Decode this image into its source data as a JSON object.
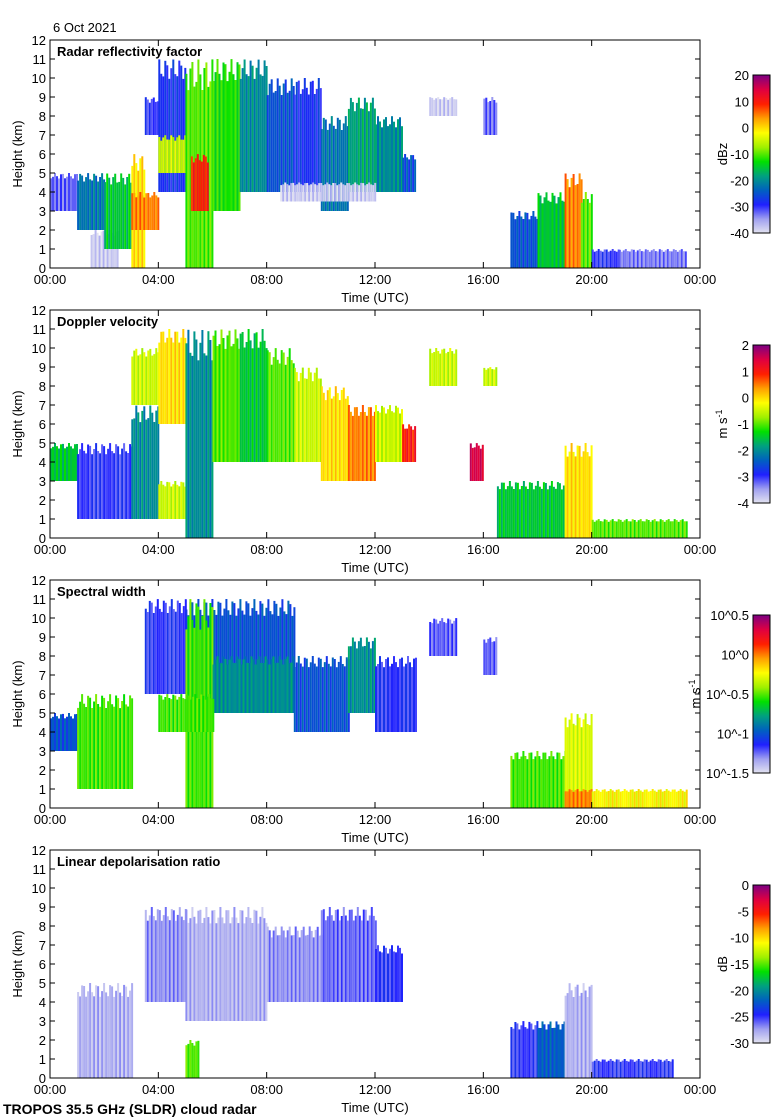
{
  "date_label": "6 Oct 2021",
  "footer": "TROPOS 35.5 GHz (SLDR) cloud radar",
  "colors": {
    "colormap": [
      "#e4e4f0",
      "#a0a0f0",
      "#2020ff",
      "#0060c0",
      "#00a080",
      "#00e000",
      "#a0f000",
      "#ffff00",
      "#ffa000",
      "#ff2000",
      "#e00040",
      "#800080"
    ]
  },
  "chart_data": [
    {
      "type": "heatmap",
      "title": "Radar reflectivity factor",
      "xlabel": "Time (UTC)",
      "ylabel": "Height (km)",
      "xlim": [
        0,
        24
      ],
      "ylim": [
        0,
        12
      ],
      "xticks": [
        "00:00",
        "04:00",
        "08:00",
        "12:00",
        "16:00",
        "20:00",
        "00:00"
      ],
      "yticks": [
        "0",
        "1",
        "2",
        "3",
        "4",
        "5",
        "6",
        "7",
        "8",
        "9",
        "10",
        "11",
        "12"
      ],
      "colorbar": {
        "unit": "dBz",
        "range": [
          -40,
          20
        ],
        "scale": "linear",
        "ticks": [
          -40,
          -30,
          -20,
          -10,
          0,
          10,
          20
        ],
        "tick_labels": [
          "-40",
          "-30",
          "-20",
          "-10",
          "0",
          "10",
          "20"
        ]
      },
      "cells_columns": [
        "time_start_h",
        "time_end_h",
        "height_bottom_km",
        "height_top_km",
        "value"
      ],
      "cells": [
        [
          0,
          1,
          3,
          5,
          -32
        ],
        [
          1.5,
          2.5,
          0,
          2,
          -38
        ],
        [
          1,
          2,
          2,
          5,
          -22
        ],
        [
          2,
          3,
          1,
          5,
          -15
        ],
        [
          3,
          3.5,
          0,
          6,
          0
        ],
        [
          3,
          4,
          2,
          4,
          5
        ],
        [
          3.5,
          4,
          7,
          9,
          -30
        ],
        [
          4,
          5,
          4,
          11,
          -28
        ],
        [
          4,
          5,
          5,
          7,
          -5
        ],
        [
          5,
          6,
          0,
          11,
          -10
        ],
        [
          5.2,
          5.8,
          3,
          6,
          10
        ],
        [
          6,
          7,
          3,
          11,
          -12
        ],
        [
          7,
          8,
          4,
          11,
          -20
        ],
        [
          8,
          9,
          4,
          10,
          -25
        ],
        [
          9,
          10,
          4,
          10,
          -28
        ],
        [
          10,
          11,
          3,
          8,
          -22
        ],
        [
          11,
          12,
          4,
          9,
          -18
        ],
        [
          12,
          13,
          4,
          8,
          -20
        ],
        [
          13,
          13.5,
          4,
          6,
          -25
        ],
        [
          8.5,
          12,
          3.5,
          4.5,
          -38
        ],
        [
          14,
          15,
          8,
          9,
          -38
        ],
        [
          16,
          16.5,
          7,
          9,
          -32
        ],
        [
          17,
          18,
          0,
          3,
          -25
        ],
        [
          18,
          19,
          0,
          4,
          -15
        ],
        [
          19,
          19.6,
          0,
          5,
          5
        ],
        [
          19.6,
          20,
          0,
          4,
          -10
        ],
        [
          20,
          21,
          0,
          1,
          -30
        ],
        [
          21,
          23.5,
          0,
          1,
          -33
        ]
      ]
    },
    {
      "type": "heatmap",
      "title": "Doppler velocity",
      "xlabel": "Time (UTC)",
      "ylabel": "Height (km)",
      "xlim": [
        0,
        24
      ],
      "ylim": [
        0,
        12
      ],
      "xticks": [
        "00:00",
        "04:00",
        "08:00",
        "12:00",
        "16:00",
        "20:00",
        "00:00"
      ],
      "yticks": [
        "0",
        "1",
        "2",
        "3",
        "4",
        "5",
        "6",
        "7",
        "8",
        "9",
        "10",
        "11",
        "12"
      ],
      "colorbar": {
        "unit": "m s^-1",
        "range": [
          -4,
          2
        ],
        "scale": "linear",
        "ticks": [
          -4,
          -3,
          -2,
          -1,
          0,
          1,
          2
        ],
        "tick_labels": [
          "-4",
          "-3",
          "-2",
          "-1",
          "0",
          "1",
          "2"
        ]
      },
      "cells_columns": [
        "time_start_h",
        "time_end_h",
        "height_bottom_km",
        "height_top_km",
        "value"
      ],
      "cells": [
        [
          0,
          1,
          3,
          5,
          -1.5
        ],
        [
          1,
          3,
          1,
          5,
          -3
        ],
        [
          3,
          4,
          1,
          7,
          -2
        ],
        [
          3,
          4,
          7,
          10,
          -0.5
        ],
        [
          4,
          5,
          6,
          11,
          0
        ],
        [
          4,
          5,
          1,
          3,
          -0.5
        ],
        [
          5,
          6,
          0,
          11,
          -2
        ],
        [
          6,
          7,
          4,
          11,
          -1
        ],
        [
          7,
          8,
          4,
          11,
          -1.5
        ],
        [
          8,
          9,
          4,
          10,
          -1
        ],
        [
          9,
          10,
          4,
          9,
          -0.5
        ],
        [
          10,
          11,
          3,
          8,
          0
        ],
        [
          11,
          12,
          3,
          7,
          0.5
        ],
        [
          12,
          13,
          4,
          7,
          -0.5
        ],
        [
          13,
          13.5,
          4,
          6,
          1
        ],
        [
          14,
          15,
          8,
          10,
          -0.5
        ],
        [
          15.5,
          16,
          3,
          5,
          1.5
        ],
        [
          16,
          16.5,
          8,
          9,
          -0.5
        ],
        [
          16.5,
          19,
          0,
          3,
          -1.5
        ],
        [
          19,
          20,
          0,
          5,
          0
        ],
        [
          20,
          23.5,
          0,
          1,
          -1
        ]
      ]
    },
    {
      "type": "heatmap",
      "title": "Spectral width",
      "xlabel": "Time (UTC)",
      "ylabel": "Height (km)",
      "xlim": [
        0,
        24
      ],
      "ylim": [
        0,
        12
      ],
      "xticks": [
        "00:00",
        "04:00",
        "08:00",
        "12:00",
        "16:00",
        "20:00",
        "00:00"
      ],
      "yticks": [
        "0",
        "1",
        "2",
        "3",
        "4",
        "5",
        "6",
        "7",
        "8",
        "9",
        "10",
        "11",
        "12"
      ],
      "colorbar": {
        "unit": "m s^-1",
        "range": [
          0.0316,
          3.162
        ],
        "scale": "log",
        "ticks": [
          0.0316,
          0.1,
          0.316,
          1,
          3.162
        ],
        "tick_labels": [
          "10^-1.5",
          "10^-1",
          "10^-0.5",
          "10^0",
          "10^0.5"
        ]
      },
      "cells_columns": [
        "time_start_h",
        "time_end_h",
        "height_bottom_km",
        "height_top_km",
        "value"
      ],
      "cells": [
        [
          0,
          1,
          3,
          5,
          0.1
        ],
        [
          1,
          3,
          1,
          6,
          0.3
        ],
        [
          3.5,
          5,
          6,
          11,
          0.07
        ],
        [
          5,
          9,
          5,
          11,
          0.1
        ],
        [
          5,
          6,
          0,
          11,
          0.3
        ],
        [
          6,
          9,
          5,
          8,
          0.15
        ],
        [
          4,
          6,
          4,
          6,
          0.3
        ],
        [
          9,
          11,
          4,
          8,
          0.1
        ],
        [
          11,
          12,
          5,
          9,
          0.15
        ],
        [
          12,
          13.5,
          4,
          8,
          0.07
        ],
        [
          14,
          15,
          8,
          10,
          0.06
        ],
        [
          16,
          16.5,
          7,
          9,
          0.06
        ],
        [
          17,
          19,
          0,
          3,
          0.3
        ],
        [
          19,
          20,
          0,
          5,
          0.5
        ],
        [
          19,
          20,
          0,
          1,
          1.0
        ],
        [
          20,
          23.5,
          0,
          1,
          0.6
        ]
      ]
    },
    {
      "type": "heatmap",
      "title": "Linear depolarisation ratio",
      "xlabel": "Time (UTC)",
      "ylabel": "Height (km)",
      "xlim": [
        0,
        24
      ],
      "ylim": [
        0,
        12
      ],
      "xticks": [
        "00:00",
        "04:00",
        "08:00",
        "12:00",
        "16:00",
        "20:00",
        "00:00"
      ],
      "yticks": [
        "0",
        "1",
        "2",
        "3",
        "4",
        "5",
        "6",
        "7",
        "8",
        "9",
        "10",
        "11",
        "12"
      ],
      "colorbar": {
        "unit": "dB",
        "range": [
          -30,
          0
        ],
        "scale": "linear",
        "ticks": [
          -30,
          -25,
          -20,
          -15,
          -10,
          -5,
          0
        ],
        "tick_labels": [
          "-30",
          "-25",
          "-20",
          "-15",
          "-10",
          "-5",
          "0"
        ]
      },
      "cells_columns": [
        "time_start_h",
        "time_end_h",
        "height_bottom_km",
        "height_top_km",
        "value"
      ],
      "cells": [
        [
          1,
          3,
          0,
          5,
          -28
        ],
        [
          3.5,
          5,
          4,
          9,
          -27
        ],
        [
          5,
          8,
          3,
          9,
          -28
        ],
        [
          8,
          10,
          4,
          8,
          -27
        ],
        [
          10,
          12,
          4,
          9,
          -26
        ],
        [
          12,
          13,
          4,
          7,
          -25
        ],
        [
          17,
          18,
          0,
          3,
          -25
        ],
        [
          18,
          19,
          0,
          3,
          -22
        ],
        [
          19,
          20,
          0,
          5,
          -28
        ],
        [
          20,
          23,
          0,
          1,
          -25
        ],
        [
          5,
          5.5,
          0,
          2,
          -15
        ]
      ]
    }
  ]
}
